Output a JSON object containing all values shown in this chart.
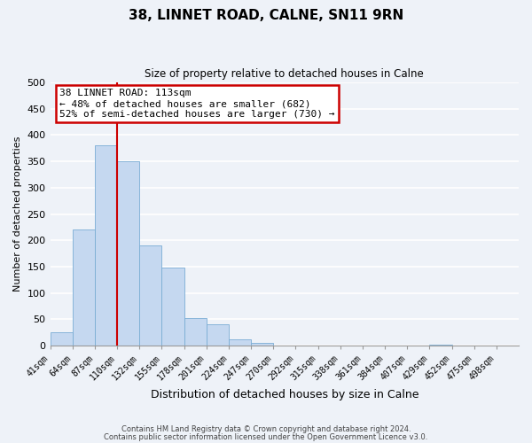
{
  "title": "38, LINNET ROAD, CALNE, SN11 9RN",
  "subtitle": "Size of property relative to detached houses in Calne",
  "xlabel": "Distribution of detached houses by size in Calne",
  "ylabel": "Number of detached properties",
  "bar_values": [
    25,
    220,
    380,
    350,
    190,
    148,
    53,
    40,
    12,
    6,
    0,
    0,
    0,
    0,
    0,
    0,
    0,
    2,
    0,
    0,
    0
  ],
  "bin_labels": [
    "41sqm",
    "64sqm",
    "87sqm",
    "110sqm",
    "132sqm",
    "155sqm",
    "178sqm",
    "201sqm",
    "224sqm",
    "247sqm",
    "270sqm",
    "292sqm",
    "315sqm",
    "338sqm",
    "361sqm",
    "384sqm",
    "407sqm",
    "429sqm",
    "452sqm",
    "475sqm",
    "498sqm"
  ],
  "bar_color": "#c5d8f0",
  "bar_edge_color": "#7aadd4",
  "bg_color": "#eef2f8",
  "grid_color": "#ffffff",
  "ylim": [
    0,
    500
  ],
  "yticks": [
    0,
    50,
    100,
    150,
    200,
    250,
    300,
    350,
    400,
    450,
    500
  ],
  "vline_x": 3,
  "annotation_title": "38 LINNET ROAD: 113sqm",
  "annotation_line1": "← 48% of detached houses are smaller (682)",
  "annotation_line2": "52% of semi-detached houses are larger (730) →",
  "annotation_box_color": "#ffffff",
  "annotation_border_color": "#cc0000",
  "vline_color": "#cc0000",
  "footer1": "Contains HM Land Registry data © Crown copyright and database right 2024.",
  "footer2": "Contains public sector information licensed under the Open Government Licence v3.0."
}
